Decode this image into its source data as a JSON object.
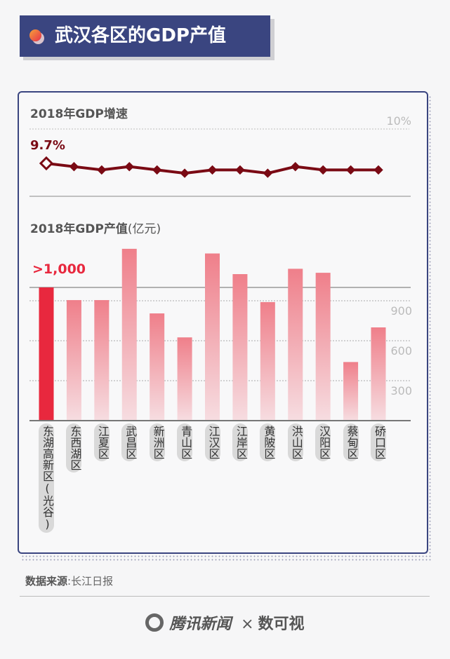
{
  "header": {
    "title": "武汉各区的GDP产值"
  },
  "chart_data": [
    {
      "type": "line",
      "title": "2018年GDP增速",
      "categories": [
        "东湖高新区(光谷)",
        "东西湖区",
        "江夏区",
        "武昌区",
        "新洲区",
        "青山区",
        "江汉区",
        "江岸区",
        "黄陂区",
        "洪山区",
        "汉阳区",
        "蔡甸区",
        "硚口区"
      ],
      "values": [
        9.7,
        9.6,
        9.5,
        9.6,
        9.5,
        9.4,
        9.5,
        9.5,
        9.4,
        9.6,
        9.5,
        9.5,
        9.5
      ],
      "highlight_label": "9.7%",
      "y_tick_label": "10%",
      "color": "#7a0a14"
    },
    {
      "type": "bar",
      "title": "2018年GDP产值",
      "unit": "(亿元)",
      "categories": [
        "东湖高新区(光谷)",
        "东西湖区",
        "江夏区",
        "武昌区",
        "新洲区",
        "青山区",
        "江汉区",
        "江岸区",
        "黄陂区",
        "洪山区",
        "汉阳区",
        "蔡甸区",
        "硚口区"
      ],
      "values": [
        1000,
        905,
        905,
        1290,
        805,
        625,
        1255,
        1100,
        890,
        1140,
        1110,
        440,
        700
      ],
      "highlight_label": ">1,000",
      "y_ticks": [
        300,
        600,
        900
      ],
      "ylim": [
        0,
        1300
      ],
      "highlight_color": "#e8283e",
      "bar_color": "#ef7f8a"
    }
  ],
  "footer": {
    "source_label": "数据来源",
    "source_value": ":长江日报",
    "brand": "腾讯新闻",
    "times": "×",
    "partner": "数可视"
  }
}
